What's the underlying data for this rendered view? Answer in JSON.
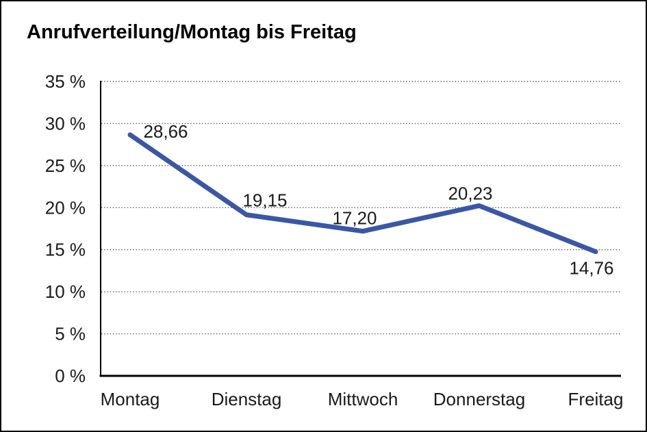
{
  "chart": {
    "title": "Anrufverteilung/Montag bis Freitag"
  },
  "chart_data": {
    "type": "line",
    "title": "Anrufverteilung/Montag bis Freitag",
    "categories": [
      "Montag",
      "Dienstag",
      "Mittwoch",
      "Donnerstag",
      "Freitag"
    ],
    "values": [
      28.66,
      19.15,
      17.2,
      20.23,
      14.76
    ],
    "value_labels": [
      "28,66",
      "19,15",
      "17,20",
      "20,23",
      "14,76"
    ],
    "xlabel": "",
    "ylabel": "",
    "ylim": [
      0,
      35
    ],
    "ytick_step": 5,
    "ytick_labels": [
      "0 %",
      "5 %",
      "10 %",
      "15 %",
      "20 %",
      "25 %",
      "30 %",
      "35 %"
    ],
    "grid": "dotted-horizontal",
    "legend": "none",
    "line_color": "#3A57A6",
    "axis_color": "#000000",
    "gridline_color": "#555555",
    "text_color": "#1a1a1a"
  }
}
